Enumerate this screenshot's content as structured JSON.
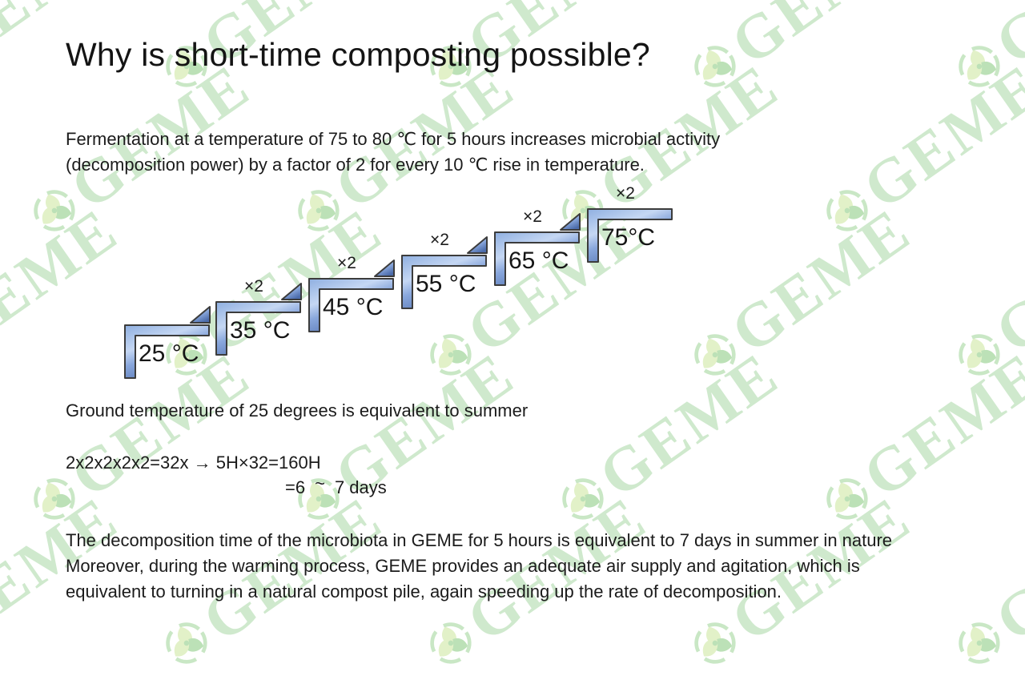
{
  "slide": {
    "title": "Why is short-time composting possible?",
    "intro": {
      "line1": "Fermentation at a temperature of 75 to 80 ℃ for 5 hours increases microbial activity",
      "line2": "(decomposition power) by a factor of 2 for every 10 ℃ rise in temperature."
    },
    "ground_note": "Ground temperature of 25 degrees is equivalent to summer",
    "equation": {
      "line1": "2x2x2x2x2=32x → 5H×32=160H",
      "line2_prefix": "=6",
      "line2_tilde": "~",
      "line2_suffix": "7 days"
    },
    "conclusion": {
      "line1": "The decomposition time of the microbiota in GEME for 5 hours is equivalent to 7 days in summer in nature",
      "line2": "Moreover, during the warming process, GEME provides an adequate air supply and agitation, which is",
      "line3": "equivalent to turning in a natural compost pile, again speeding up the rate of decomposition."
    }
  },
  "diagram": {
    "steps": [
      {
        "label": "25 °C"
      },
      {
        "label": "35 °C",
        "multiplier": "×2"
      },
      {
        "label": "45 °C",
        "multiplier": "×2"
      },
      {
        "label": "55 °C",
        "multiplier": "×2"
      },
      {
        "label": "65 °C",
        "multiplier": "×2"
      },
      {
        "label": "75°C",
        "multiplier": "×2"
      }
    ],
    "bar_outline_color": "#3c3c3c",
    "bar_gradient": [
      "#8fafe0",
      "#c5d7f3",
      "#89a7dc",
      "#4c6cab"
    ]
  },
  "watermark": {
    "text": "GEME",
    "text_color": "#cfe9cd",
    "logo_color_light": "#e2f1c8",
    "logo_color_green": "#bce1b7"
  }
}
